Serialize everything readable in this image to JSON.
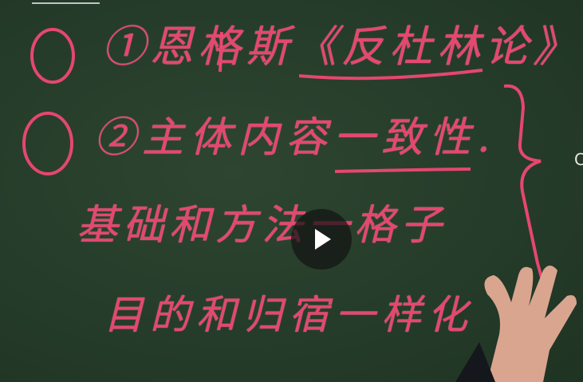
{
  "board": {
    "line1": "①恩格斯《反杜林论》.",
    "line2": "②主体内容一致性.",
    "line3": "基础和方法一格子",
    "line4": "目的和归宿一样化",
    "edge_char": "C"
  },
  "player": {
    "play_icon": "play-icon"
  },
  "colors": {
    "board": "#263c2a",
    "chalk_pink": "#e5476f",
    "overlay": "#141414"
  }
}
